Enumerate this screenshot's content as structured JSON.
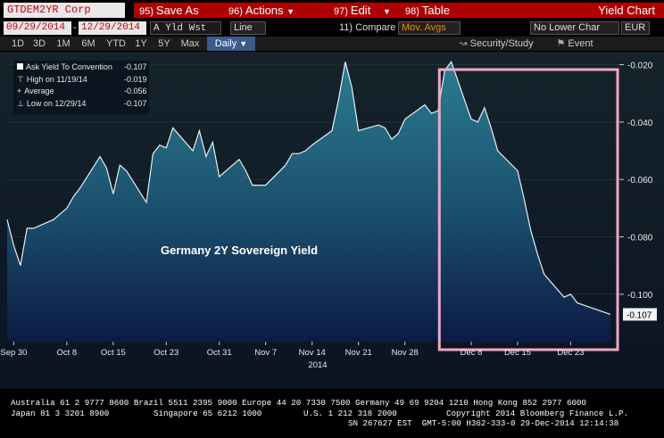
{
  "toolbar": {
    "security": "GTDEM2YR Corp",
    "save_label": "Save As",
    "save_num": "95)",
    "actions_label": "Actions",
    "actions_num": "96)",
    "edit_label": "Edit",
    "edit_num": "97)",
    "table_label": "Table",
    "table_num": "98)",
    "title": "Yield Chart"
  },
  "controls": {
    "start_date": "09/29/2014",
    "end_date": "12/29/2014",
    "field": "A Yld Wst",
    "line_mode": "Line",
    "compare_label": "11) Compare",
    "compare_value": "Mov. Avgs",
    "lower_chart": "No Lower Char",
    "currency": "EUR",
    "security_study": "Security/Study",
    "event": "Event"
  },
  "timeframes": [
    "1D",
    "3D",
    "1M",
    "6M",
    "YTD",
    "1Y",
    "5Y",
    "Max"
  ],
  "frequency": "Daily",
  "legend": {
    "rows": [
      {
        "label": "Ask Yield To Convention",
        "value": "-0.107"
      },
      {
        "label": "High on 11/19/14",
        "value": "-0.019"
      },
      {
        "label": "Average",
        "value": "-0.056"
      },
      {
        "label": "Low on 12/29/14",
        "value": "-0.107"
      }
    ]
  },
  "chart_data": {
    "type": "area",
    "title": "Germany 2Y Sovereign Yield",
    "xlabel": "2014",
    "x_ticks": [
      "Sep 30",
      "Oct 8",
      "Oct 15",
      "Oct 23",
      "Oct 31",
      "Nov 7",
      "Nov 14",
      "Nov 21",
      "Nov 28",
      "Dec 8",
      "Dec 15",
      "Dec 23"
    ],
    "y_ticks": [
      "-0.020",
      "-0.040",
      "-0.060",
      "-0.080",
      "-0.100"
    ],
    "ylim": [
      -0.1165,
      -0.0155
    ],
    "last_value_label": "-0.107",
    "highlight": {
      "from": "Dec 5",
      "to": "Dec 29",
      "color": "#f2a7c3"
    },
    "series": [
      {
        "values": [
          [
            "2014-09-29",
            -0.074
          ],
          [
            "2014-09-30",
            -0.083
          ],
          [
            "2014-10-01",
            -0.09
          ],
          [
            "2014-10-02",
            -0.077
          ],
          [
            "2014-10-03",
            -0.077
          ],
          [
            "2014-10-06",
            -0.074
          ],
          [
            "2014-10-07",
            -0.072
          ],
          [
            "2014-10-08",
            -0.07
          ],
          [
            "2014-10-09",
            -0.066
          ],
          [
            "2014-10-10",
            -0.063
          ],
          [
            "2014-10-13",
            -0.052
          ],
          [
            "2014-10-14",
            -0.056
          ],
          [
            "2014-10-15",
            -0.065
          ],
          [
            "2014-10-16",
            -0.055
          ],
          [
            "2014-10-17",
            -0.057
          ],
          [
            "2014-10-20",
            -0.068
          ],
          [
            "2014-10-21",
            -0.051
          ],
          [
            "2014-10-22",
            -0.048
          ],
          [
            "2014-10-23",
            -0.049
          ],
          [
            "2014-10-24",
            -0.042
          ],
          [
            "2014-10-27",
            -0.05
          ],
          [
            "2014-10-28",
            -0.043
          ],
          [
            "2014-10-29",
            -0.052
          ],
          [
            "2014-10-30",
            -0.047
          ],
          [
            "2014-10-31",
            -0.059
          ],
          [
            "2014-11-03",
            -0.053
          ],
          [
            "2014-11-04",
            -0.057
          ],
          [
            "2014-11-05",
            -0.062
          ],
          [
            "2014-11-06",
            -0.062
          ],
          [
            "2014-11-07",
            -0.062
          ],
          [
            "2014-11-10",
            -0.055
          ],
          [
            "2014-11-11",
            -0.051
          ],
          [
            "2014-11-12",
            -0.051
          ],
          [
            "2014-11-13",
            -0.05
          ],
          [
            "2014-11-14",
            -0.048
          ],
          [
            "2014-11-17",
            -0.043
          ],
          [
            "2014-11-18",
            -0.032
          ],
          [
            "2014-11-19",
            -0.019
          ],
          [
            "2014-11-20",
            -0.028
          ],
          [
            "2014-11-21",
            -0.043
          ],
          [
            "2014-11-24",
            -0.041
          ],
          [
            "2014-11-25",
            -0.042
          ],
          [
            "2014-11-26",
            -0.046
          ],
          [
            "2014-11-27",
            -0.044
          ],
          [
            "2014-11-28",
            -0.039
          ],
          [
            "2014-12-01",
            -0.034
          ],
          [
            "2014-12-02",
            -0.037
          ],
          [
            "2014-12-03",
            -0.036
          ],
          [
            "2014-12-04",
            -0.022
          ],
          [
            "2014-12-05",
            -0.019
          ],
          [
            "2014-12-08",
            -0.039
          ],
          [
            "2014-12-09",
            -0.04
          ],
          [
            "2014-12-10",
            -0.035
          ],
          [
            "2014-12-11",
            -0.042
          ],
          [
            "2014-12-12",
            -0.05
          ],
          [
            "2014-12-15",
            -0.057
          ],
          [
            "2014-12-16",
            -0.067
          ],
          [
            "2014-12-17",
            -0.078
          ],
          [
            "2014-12-18",
            -0.086
          ],
          [
            "2014-12-19",
            -0.093
          ],
          [
            "2014-12-22",
            -0.101
          ],
          [
            "2014-12-23",
            -0.1
          ],
          [
            "2014-12-24",
            -0.103
          ],
          [
            "2014-12-29",
            -0.107
          ]
        ]
      }
    ]
  },
  "footer": {
    "line1": "Australia 61 2 9777 8600 Brazil 5511 2395 9000 Europe 44 20 7330 7500 Germany 49 69 9204 1210 Hong Kong 852 2977 6000",
    "line2a": "Japan 81 3 3201 8900",
    "line2b": "Singapore 65 6212 1000",
    "line2c": "U.S. 1 212 318 2000",
    "line2d": "Copyright 2014 Bloomberg Finance L.P.",
    "line3": "SN 267627 EST  GMT-5:00 H362-333-0 29-Dec-2014 12:14:38"
  }
}
